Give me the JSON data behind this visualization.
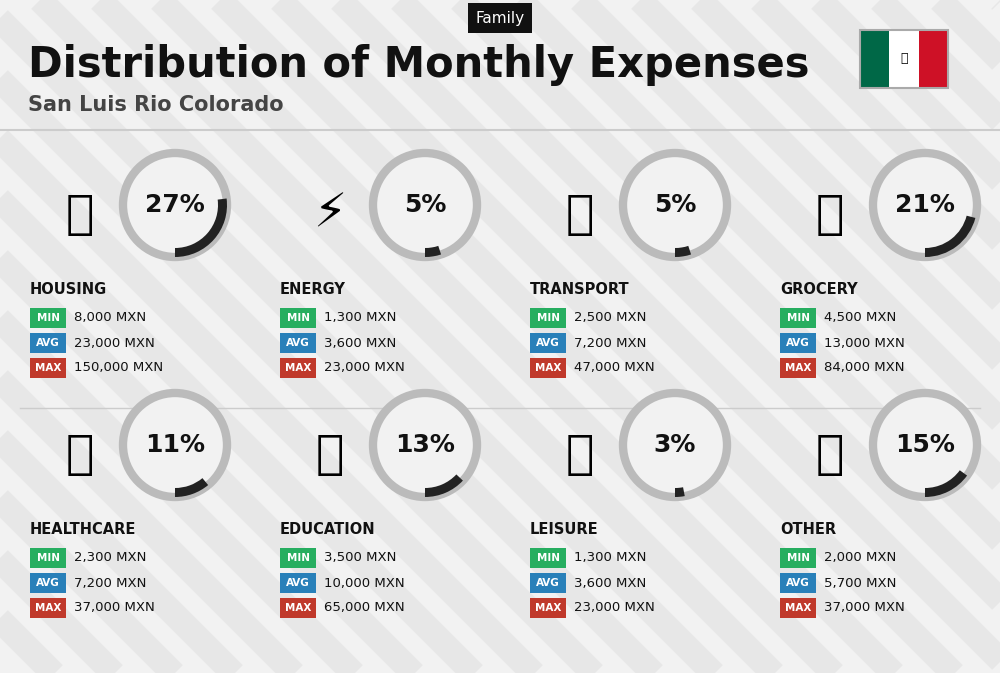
{
  "title": "Distribution of Monthly Expenses",
  "subtitle": "San Luis Rio Colorado",
  "tag": "Family",
  "bg_color": "#f2f2f2",
  "categories": [
    {
      "name": "HOUSING",
      "pct": 27,
      "min_val": "8,000 MXN",
      "avg_val": "23,000 MXN",
      "max_val": "150,000 MXN",
      "row": 0,
      "col": 0
    },
    {
      "name": "ENERGY",
      "pct": 5,
      "min_val": "1,300 MXN",
      "avg_val": "3,600 MXN",
      "max_val": "23,000 MXN",
      "row": 0,
      "col": 1
    },
    {
      "name": "TRANSPORT",
      "pct": 5,
      "min_val": "2,500 MXN",
      "avg_val": "7,200 MXN",
      "max_val": "47,000 MXN",
      "row": 0,
      "col": 2
    },
    {
      "name": "GROCERY",
      "pct": 21,
      "min_val": "4,500 MXN",
      "avg_val": "13,000 MXN",
      "max_val": "84,000 MXN",
      "row": 0,
      "col": 3
    },
    {
      "name": "HEALTHCARE",
      "pct": 11,
      "min_val": "2,300 MXN",
      "avg_val": "7,200 MXN",
      "max_val": "37,000 MXN",
      "row": 1,
      "col": 0
    },
    {
      "name": "EDUCATION",
      "pct": 13,
      "min_val": "3,500 MXN",
      "avg_val": "10,000 MXN",
      "max_val": "65,000 MXN",
      "row": 1,
      "col": 1
    },
    {
      "name": "LEISURE",
      "pct": 3,
      "min_val": "1,300 MXN",
      "avg_val": "3,600 MXN",
      "max_val": "23,000 MXN",
      "row": 1,
      "col": 2
    },
    {
      "name": "OTHER",
      "pct": 15,
      "min_val": "2,000 MXN",
      "avg_val": "5,700 MXN",
      "max_val": "37,000 MXN",
      "row": 1,
      "col": 3
    }
  ],
  "min_color": "#27ae60",
  "avg_color": "#2980b9",
  "max_color": "#c0392b",
  "circle_edge_color": "#bbbbbb",
  "circle_fill_color": "#f2f2f2",
  "arc_color": "#222222",
  "text_color": "#111111",
  "tag_bg": "#111111",
  "tag_text": "#ffffff",
  "stripe_color": "#dedede",
  "title_fontsize": 30,
  "subtitle_fontsize": 15,
  "tag_fontsize": 11,
  "cat_name_fontsize": 10.5,
  "pct_fontsize": 18,
  "val_fontsize": 9.5,
  "badge_fontsize": 7.5
}
